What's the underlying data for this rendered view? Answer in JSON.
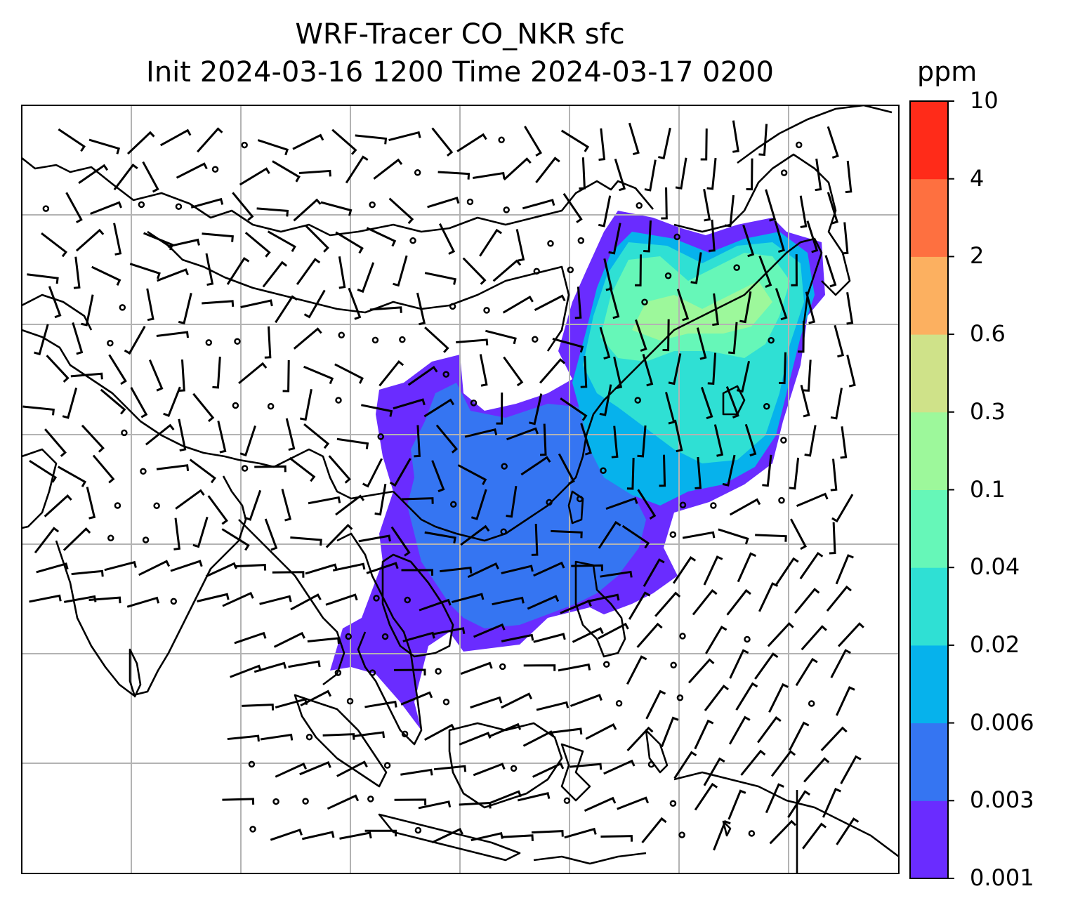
{
  "title": {
    "line1": "WRF-Tracer CO_NKR sfc",
    "line2": "Init 2024-03-16 1200 Time 2024-03-17 0200"
  },
  "colorbar": {
    "unit": "ppm",
    "ticks": [
      "10",
      "4",
      "2",
      "0.6",
      "0.3",
      "0.1",
      "0.04",
      "0.02",
      "0.006",
      "0.003",
      "0.001"
    ],
    "colors": [
      "#6a2cff",
      "#3575f2",
      "#06b2ec",
      "#2fe0d4",
      "#66f7b8",
      "#9df89b",
      "#cfe289",
      "#fcb060",
      "#fe7040",
      "#ff2b19"
    ]
  },
  "map": {
    "gridlines": true,
    "plume_levels": {
      "outer": "#6a2cff",
      "inner": "#3575f2",
      "mid": "#06b2ec",
      "core": "#2fe0d4",
      "hot": "#66f7b8",
      "peak": "#9df89b"
    }
  }
}
